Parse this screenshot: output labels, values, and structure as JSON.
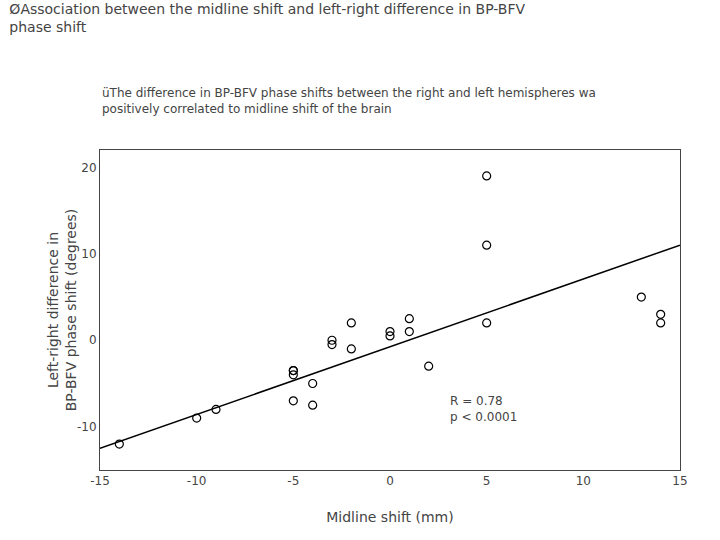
{
  "chart_data": {
    "type": "scatter",
    "title": "ØAssociation between the midline shift and left-right difference in BP-BFV\nphase shift",
    "subtitle": "üThe difference in BP-BFV phase shifts between the right and left hemispheres wa\npositively correlated to midline shift of the brain",
    "x_label": "Midline shift (mm)",
    "y_label": "Left-right difference in\nBP-BFV phase shift (degrees)",
    "annotations": [
      "R = 0.78\np < 0.0001"
    ],
    "series": [
      {
        "type": "scatter",
        "marker": "open circle",
        "color": "#000000",
        "x": [
          -14,
          -10,
          -9,
          -5,
          -5,
          -5,
          -5,
          -4,
          -4,
          -3,
          -3,
          -2,
          -2,
          0,
          0,
          1,
          1,
          2,
          5,
          5,
          5,
          13,
          14,
          14
        ],
        "values": [
          -12,
          -9,
          -8,
          -3.5,
          -4,
          -3.5,
          -7,
          -7.5,
          -5,
          -0.5,
          0,
          2,
          -1,
          0.5,
          1,
          1,
          2.5,
          -3,
          19,
          11,
          2,
          5,
          3,
          2
        ]
      },
      {
        "type": "line",
        "line_style": "solid",
        "color": "#000000",
        "x": [
          -15,
          15
        ],
        "values": [
          -12.5,
          11
        ]
      }
    ],
    "xlim": [
      -15,
      15
    ],
    "ylim": [
      -15,
      22
    ],
    "xticks": [
      -15,
      -10,
      -5,
      0,
      5,
      10,
      15
    ],
    "yticks": [
      -10,
      0,
      10,
      20
    ],
    "grid": false
  }
}
